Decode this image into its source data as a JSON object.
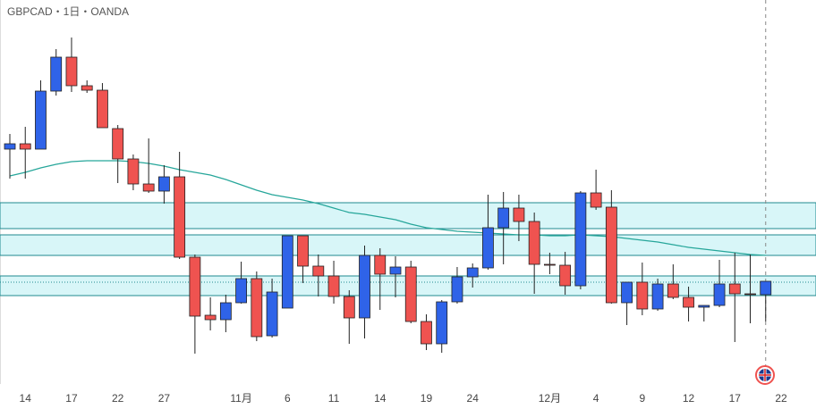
{
  "chart_data": {
    "type": "candlestick",
    "title": "GBPCAD・1日・OANDA",
    "categories": [
      null,
      "14",
      null,
      null,
      "17",
      null,
      null,
      "22",
      null,
      null,
      "27",
      null,
      null,
      null,
      null,
      "11月",
      null,
      null,
      "6",
      null,
      null,
      "11",
      null,
      null,
      "14",
      null,
      null,
      "19",
      null,
      null,
      "24",
      null,
      null,
      null,
      null,
      "12月",
      null,
      null,
      "4",
      null,
      null,
      "9",
      null,
      null,
      "12",
      null,
      null,
      "17",
      null,
      null,
      "22"
    ],
    "open": [
      1.7666,
      1.7678,
      1.7666,
      1.7796,
      1.7872,
      1.7808,
      1.7798,
      1.7712,
      1.7644,
      1.7588,
      1.7572,
      1.7604,
      1.7424,
      1.7294,
      1.7284,
      1.7322,
      1.7376,
      1.7248,
      1.731,
      1.7472,
      1.7404,
      1.7382,
      1.7336,
      1.7288,
      1.7428,
      1.7386,
      1.7402,
      1.728,
      1.723,
      1.7324,
      1.738,
      1.74,
      1.749,
      1.7534,
      1.7504,
      1.7408,
      1.7406,
      1.736,
      1.7568,
      1.7536,
      1.7322,
      1.7368,
      1.7308,
      1.7364,
      1.7334,
      1.7312,
      1.7316,
      1.7364,
      1.7342,
      1.734,
      null
    ],
    "high": [
      1.77,
      1.7716,
      1.782,
      1.789,
      1.7916,
      1.782,
      1.7814,
      1.772,
      1.7654,
      1.769,
      1.763,
      1.766,
      1.743,
      1.7334,
      1.734,
      1.7414,
      1.7392,
      1.7376,
      1.7472,
      1.7472,
      1.743,
      1.7416,
      1.735,
      1.745,
      1.7444,
      1.7426,
      1.7416,
      1.7296,
      1.7328,
      1.7402,
      1.741,
      1.7564,
      1.757,
      1.7564,
      1.7524,
      1.7434,
      1.7436,
      1.7572,
      1.762,
      1.7574,
      1.7368,
      1.7412,
      1.7376,
      1.7408,
      1.7358,
      1.7316,
      1.7418,
      1.7434,
      1.743,
      1.737,
      null
    ],
    "low": [
      1.76,
      1.76,
      1.7666,
      1.7786,
      1.7794,
      1.7792,
      1.7714,
      1.759,
      1.7574,
      1.7568,
      1.7544,
      1.742,
      1.7208,
      1.726,
      1.7256,
      1.732,
      1.7236,
      1.7244,
      1.731,
      1.7366,
      1.7336,
      1.732,
      1.723,
      1.7242,
      1.7306,
      1.7334,
      1.7276,
      1.7216,
      1.721,
      1.732,
      1.7356,
      1.7396,
      1.7408,
      1.746,
      1.7342,
      1.7386,
      1.734,
      1.7352,
      1.753,
      1.732,
      1.7272,
      1.7294,
      1.7304,
      1.733,
      1.728,
      1.728,
      1.7312,
      1.7234,
      1.7276,
      1.728,
      null
    ],
    "close": [
      1.7678,
      1.7666,
      1.7796,
      1.7872,
      1.7808,
      1.7798,
      1.7714,
      1.7644,
      1.7588,
      1.7572,
      1.7604,
      1.7424,
      1.7292,
      1.7284,
      1.7322,
      1.7376,
      1.7246,
      1.7346,
      1.7472,
      1.7404,
      1.7382,
      1.7336,
      1.7288,
      1.7428,
      1.7386,
      1.7402,
      1.728,
      1.723,
      1.7324,
      1.738,
      1.74,
      1.749,
      1.7534,
      1.7504,
      1.7408,
      1.7406,
      1.736,
      1.7568,
      1.7536,
      1.7322,
      1.7368,
      1.7308,
      1.7364,
      1.7334,
      1.7312,
      1.7316,
      1.7364,
      1.7342,
      1.734,
      1.737,
      null
    ],
    "up_color": "#2f63e8",
    "down_color": "#ef5350",
    "ma": {
      "color": "#26a69a",
      "values": [
        1.7606,
        1.7614,
        1.7624,
        1.7632,
        1.7638,
        1.764,
        1.764,
        1.764,
        1.7638,
        1.7634,
        1.7628,
        1.762,
        1.7614,
        1.7608,
        1.7598,
        1.7586,
        1.7574,
        1.7564,
        1.7558,
        1.7552,
        1.7544,
        1.7534,
        1.7524,
        1.752,
        1.7514,
        1.7508,
        1.7498,
        1.749,
        1.7486,
        1.7482,
        1.748,
        1.7478,
        1.7476,
        1.7474,
        1.7474,
        1.7472,
        1.7472,
        1.7474,
        1.7472,
        1.747,
        1.7466,
        1.7462,
        1.7458,
        1.7452,
        1.7446,
        1.7442,
        1.7438,
        1.7434,
        1.743,
        1.7428,
        null
      ]
    },
    "zones": [
      [
        1.7488,
        1.7546
      ],
      [
        1.7428,
        1.7474
      ],
      [
        1.7338,
        1.7382
      ]
    ],
    "zone_color": "#d8f6f8",
    "zone_border": "#1f8a8f",
    "dotted_level": 1.7368,
    "ylim": [
      1.714,
      1.8
    ]
  }
}
